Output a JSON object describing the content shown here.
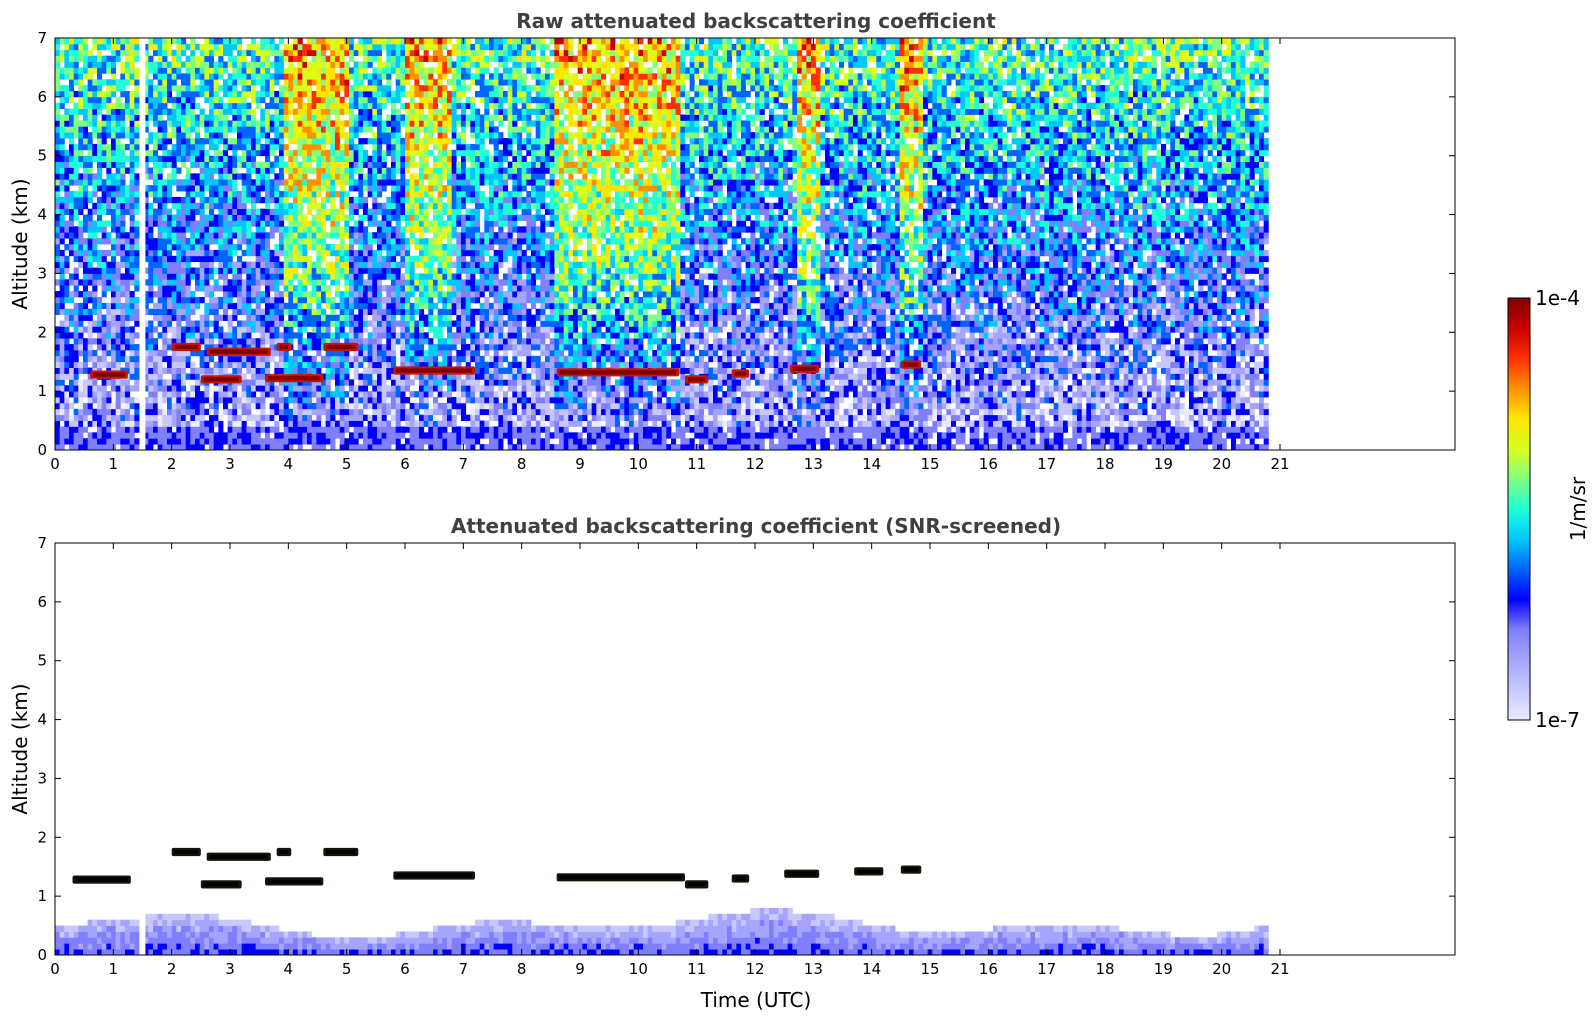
{
  "chart_data": [
    {
      "type": "heatmap",
      "title": "Raw attenuated backscattering coefficient",
      "xlabel": "",
      "ylabel": "Altitude (km)",
      "xlim": [
        0,
        24
      ],
      "ylim": [
        0,
        7
      ],
      "x_ticks": [
        "0",
        "1",
        "2",
        "3",
        "4",
        "5",
        "6",
        "7",
        "8",
        "9",
        "10",
        "11",
        "12",
        "13",
        "14",
        "15",
        "16",
        "17",
        "18",
        "19",
        "20",
        "21"
      ],
      "y_ticks": [
        "0",
        "1",
        "2",
        "3",
        "4",
        "5",
        "6",
        "7"
      ],
      "data_extent_hours": [
        0,
        20.8
      ],
      "data_gap_hours": [
        1.45,
        1.55
      ],
      "surface_layer_top_km": 0.4,
      "high_signal_bands_hours": [
        [
          3.9,
          5.0
        ],
        [
          6.0,
          6.8
        ],
        [
          8.6,
          10.7
        ],
        [
          12.7,
          13.1
        ],
        [
          14.5,
          14.9
        ]
      ],
      "cloud_layers": [
        {
          "x0": 0.6,
          "x1": 1.25,
          "alt_km": 1.28
        },
        {
          "x0": 2.0,
          "x1": 2.5,
          "alt_km": 1.75
        },
        {
          "x0": 2.5,
          "x1": 3.2,
          "alt_km": 1.2
        },
        {
          "x0": 2.6,
          "x1": 3.7,
          "alt_km": 1.67
        },
        {
          "x0": 3.6,
          "x1": 4.6,
          "alt_km": 1.22
        },
        {
          "x0": 3.8,
          "x1": 4.05,
          "alt_km": 1.75
        },
        {
          "x0": 4.6,
          "x1": 5.2,
          "alt_km": 1.75
        },
        {
          "x0": 5.8,
          "x1": 7.2,
          "alt_km": 1.35
        },
        {
          "x0": 8.6,
          "x1": 10.7,
          "alt_km": 1.32
        },
        {
          "x0": 10.8,
          "x1": 11.2,
          "alt_km": 1.2
        },
        {
          "x0": 11.6,
          "x1": 11.9,
          "alt_km": 1.3
        },
        {
          "x0": 12.6,
          "x1": 13.1,
          "alt_km": 1.38
        },
        {
          "x0": 14.5,
          "x1": 14.85,
          "alt_km": 1.45
        }
      ]
    },
    {
      "type": "heatmap",
      "title": "Attenuated backscattering coefficient (SNR-screened)",
      "xlabel": "Time (UTC)",
      "ylabel": "Altitude (km)",
      "xlim": [
        0,
        24
      ],
      "ylim": [
        0,
        7
      ],
      "x_ticks": [
        "0",
        "1",
        "2",
        "3",
        "4",
        "5",
        "6",
        "7",
        "8",
        "9",
        "10",
        "11",
        "12",
        "13",
        "14",
        "15",
        "16",
        "17",
        "18",
        "19",
        "20",
        "21"
      ],
      "y_ticks": [
        "0",
        "1",
        "2",
        "3",
        "4",
        "5",
        "6",
        "7"
      ],
      "data_extent_hours": [
        0,
        20.8
      ],
      "data_gap_hours": [
        1.45,
        1.55
      ],
      "surface_layer_top_km": 0.7,
      "cloud_layers": [
        {
          "x0": 0.3,
          "x1": 1.3,
          "alt_km": 1.28
        },
        {
          "x0": 2.0,
          "x1": 2.5,
          "alt_km": 1.75
        },
        {
          "x0": 2.5,
          "x1": 3.2,
          "alt_km": 1.2
        },
        {
          "x0": 2.6,
          "x1": 3.7,
          "alt_km": 1.67
        },
        {
          "x0": 3.6,
          "x1": 4.6,
          "alt_km": 1.25
        },
        {
          "x0": 3.8,
          "x1": 4.05,
          "alt_km": 1.75
        },
        {
          "x0": 4.6,
          "x1": 5.2,
          "alt_km": 1.75
        },
        {
          "x0": 5.8,
          "x1": 7.2,
          "alt_km": 1.35
        },
        {
          "x0": 8.6,
          "x1": 10.8,
          "alt_km": 1.32
        },
        {
          "x0": 10.8,
          "x1": 11.2,
          "alt_km": 1.2
        },
        {
          "x0": 11.6,
          "x1": 11.9,
          "alt_km": 1.3
        },
        {
          "x0": 12.5,
          "x1": 13.1,
          "alt_km": 1.38
        },
        {
          "x0": 13.7,
          "x1": 14.2,
          "alt_km": 1.42
        },
        {
          "x0": 14.5,
          "x1": 14.85,
          "alt_km": 1.45
        }
      ]
    }
  ],
  "colorbar": {
    "label": "1/m/sr",
    "max_label": "1e-4",
    "min_label": "1e-7",
    "scale": "log",
    "colors": [
      "#ebebff",
      "#c8c8ff",
      "#a5a5ff",
      "#8080ff",
      "#0000ff",
      "#0064ff",
      "#00c8ff",
      "#20ffd8",
      "#80ff80",
      "#d8ff20",
      "#ffe600",
      "#ff9000",
      "#ff3000",
      "#c80000",
      "#800000"
    ]
  }
}
